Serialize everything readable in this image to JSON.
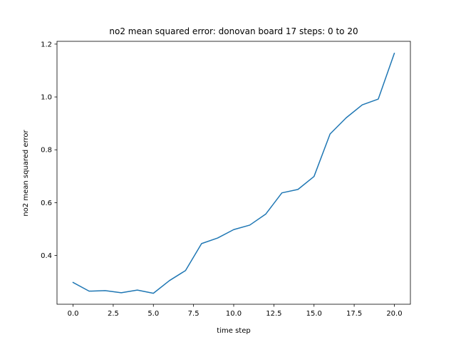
{
  "chart_data": {
    "type": "line",
    "title": "no2 mean squared error: donovan board 17 steps: 0 to 20",
    "xlabel": "time step",
    "ylabel": "no2 mean squared error",
    "xlim": [
      -1.0,
      21.0
    ],
    "ylim": [
      0.2155,
      1.2105
    ],
    "xticks": [
      0.0,
      2.5,
      5.0,
      7.5,
      10.0,
      12.5,
      15.0,
      17.5,
      20.0
    ],
    "xtick_labels": [
      "0.0",
      "2.5",
      "5.0",
      "7.5",
      "10.0",
      "12.5",
      "15.0",
      "17.5",
      "20.0"
    ],
    "yticks": [
      0.4,
      0.6,
      0.8,
      1.0,
      1.2
    ],
    "ytick_labels": [
      "0.4",
      "0.6",
      "0.8",
      "1.0",
      "1.2"
    ],
    "grid": false,
    "legend": "none",
    "series": [
      {
        "color": "#1f77b4",
        "x": [
          0,
          1,
          2,
          3,
          4,
          5,
          6,
          7,
          8,
          9,
          10,
          11,
          12,
          13,
          14,
          15,
          16,
          17,
          18,
          19,
          20
        ],
        "values": [
          0.298,
          0.265,
          0.267,
          0.259,
          0.269,
          0.257,
          0.305,
          0.343,
          0.445,
          0.466,
          0.498,
          0.515,
          0.557,
          0.637,
          0.65,
          0.699,
          0.86,
          0.921,
          0.97,
          0.992,
          1.165
        ]
      }
    ]
  }
}
